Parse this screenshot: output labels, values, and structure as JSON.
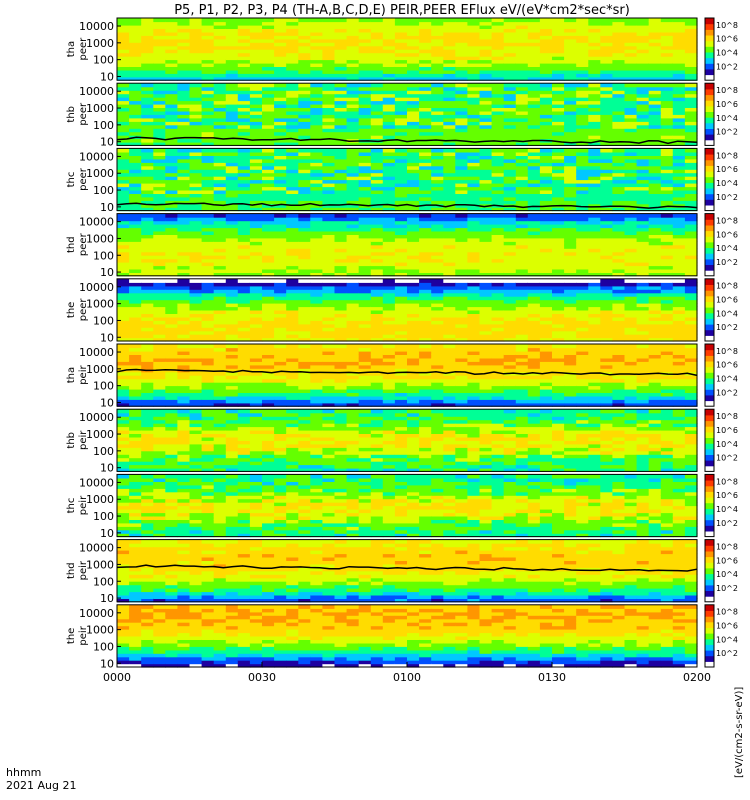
{
  "chart_data": {
    "type": "heatmap",
    "title": "P5, P1, P2, P3, P4 (TH-A,B,C,D,E) PEIR,PEER EFlux eV/(eV*cm2*sec*sr)",
    "time_axis": {
      "ticks": [
        "0000",
        "0030",
        "0100",
        "0130",
        "0200"
      ],
      "label_line1": "hhmm",
      "label_line2": "2021 Aug 21",
      "range_minutes": [
        0,
        120
      ]
    },
    "energy_axis": {
      "scale": "log",
      "ticks": [
        "10",
        "100",
        "1000",
        "10000"
      ],
      "range_eV": [
        6,
        30000
      ]
    },
    "colorbar": {
      "scale": "log",
      "ticks": [
        "10^2",
        "10^4",
        "10^6",
        "10^8"
      ],
      "range": [
        1,
        1000000000.0
      ],
      "label": "[eV/(cm2-s-sr-eV)]",
      "colors": [
        "#ffffff",
        "#1e00a0",
        "#0050ff",
        "#00c8ff",
        "#00ff96",
        "#64ff00",
        "#dcff00",
        "#ffdc00",
        "#ff9600",
        "#ff3c00",
        "#c80000"
      ]
    },
    "panels": [
      {
        "name": "tha peer",
        "line1": "tha",
        "line2": "peer",
        "kind": "peer",
        "gap_end_min": 0,
        "has_sc_pot": false,
        "peak_log_energy": 3.0,
        "level": 0.72
      },
      {
        "name": "thb peer",
        "line1": "thb",
        "line2": "peer",
        "kind": "peer_noisy",
        "gap_end_min": 0,
        "has_sc_pot": true,
        "peak_log_energy": 1.2,
        "level": 0.55
      },
      {
        "name": "thc peer",
        "line1": "thc",
        "line2": "peer",
        "kind": "peer_noisy",
        "gap_end_min": 0,
        "has_sc_pot": true,
        "peak_log_energy": 1.0,
        "level": 0.5
      },
      {
        "name": "thd peer",
        "line1": "thd",
        "line2": "peer",
        "kind": "peer",
        "gap_end_min": 0,
        "has_sc_pot": false,
        "peak_log_energy": 2.0,
        "level": 0.68
      },
      {
        "name": "the peer",
        "line1": "the",
        "line2": "peer",
        "kind": "peer",
        "gap_end_min": 0,
        "has_sc_pot": false,
        "peak_log_energy": 1.5,
        "level": 0.74
      },
      {
        "name": "tha peir",
        "line1": "tha",
        "line2": "peir",
        "kind": "peir",
        "gap_end_min": 0,
        "has_sc_pot": true,
        "peak_log_energy": 3.5,
        "level": 0.78
      },
      {
        "name": "thb peir",
        "line1": "thb",
        "line2": "peir",
        "kind": "peir_patchy",
        "gap_end_min": 0,
        "has_sc_pot": false,
        "peak_log_energy": 2.6,
        "level": 0.62
      },
      {
        "name": "thc peir",
        "line1": "thc",
        "line2": "peir",
        "kind": "peir_patchy",
        "gap_end_min": 0,
        "has_sc_pot": false,
        "peak_log_energy": 2.5,
        "level": 0.52
      },
      {
        "name": "thd peir",
        "line1": "thd",
        "line2": "peir",
        "kind": "peir",
        "gap_end_min": 0,
        "has_sc_pot": true,
        "peak_log_energy": 3.4,
        "level": 0.76
      },
      {
        "name": "the peir",
        "line1": "the",
        "line2": "peir",
        "kind": "peir",
        "gap_end_min": 0,
        "has_sc_pot": false,
        "peak_log_energy": 3.8,
        "level": 0.8
      }
    ]
  }
}
